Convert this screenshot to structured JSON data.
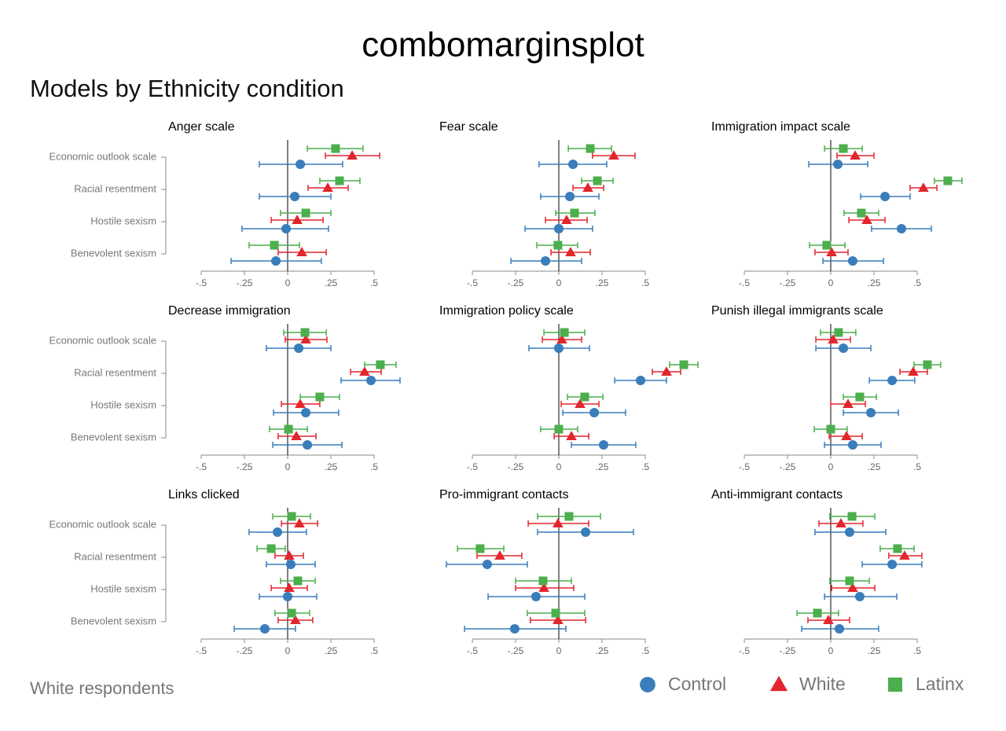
{
  "chart_data": {
    "type": "dot",
    "title": "combomarginsplot",
    "subtitle": "Models by Ethnicity condition",
    "note": "White respondents",
    "categories": [
      "Economic outlook scale",
      "Racial resentment",
      "Hostile sexism",
      "Benevolent sexism"
    ],
    "series": [
      {
        "name": "Control",
        "color": "#3a7dbb",
        "marker": "circle"
      },
      {
        "name": "White",
        "color": "#e2262d",
        "marker": "triangle"
      },
      {
        "name": "Latinx",
        "color": "#4cae4c",
        "marker": "square"
      }
    ],
    "xlim": [
      -0.5,
      0.5
    ],
    "xticks": [
      {
        "value": -0.5,
        "label": "-.5"
      },
      {
        "value": -0.25,
        "label": "-.25"
      },
      0,
      {
        "value": 0.25,
        "label": ".25"
      },
      {
        "value": 0.5,
        "label": ".5"
      }
    ],
    "panels": [
      {
        "title": "Anger scale",
        "series": [
          {
            "values": [
              0.073,
              0.041,
              -0.009,
              -0.068
            ],
            "low": [
              -0.164,
              -0.164,
              -0.264,
              -0.327
            ],
            "high": [
              0.318,
              0.25,
              0.236,
              0.195
            ]
          },
          {
            "values": [
              0.373,
              0.232,
              0.055,
              0.082
            ],
            "low": [
              0.218,
              0.118,
              -0.095,
              -0.055
            ],
            "high": [
              0.532,
              0.35,
              0.205,
              0.223
            ]
          },
          {
            "values": [
              0.277,
              0.3,
              0.105,
              -0.077
            ],
            "low": [
              0.114,
              0.186,
              -0.041,
              -0.223
            ],
            "high": [
              0.436,
              0.418,
              0.25,
              0.068
            ]
          }
        ]
      },
      {
        "title": "Fear scale",
        "series": [
          {
            "values": [
              0.082,
              0.064,
              0,
              -0.077
            ],
            "low": [
              -0.114,
              -0.105,
              -0.195,
              -0.277
            ],
            "high": [
              0.277,
              0.232,
              0.195,
              0.132
            ]
          },
          {
            "values": [
              0.318,
              0.168,
              0.045,
              0.068
            ],
            "low": [
              0.195,
              0.082,
              -0.077,
              -0.045
            ],
            "high": [
              0.441,
              0.259,
              0.164,
              0.182
            ]
          },
          {
            "values": [
              0.182,
              0.223,
              0.091,
              -0.005
            ],
            "low": [
              0.055,
              0.132,
              -0.018,
              -0.127
            ],
            "high": [
              0.305,
              0.314,
              0.209,
              0.109
            ]
          }
        ]
      },
      {
        "title": "Immigration impact scale",
        "series": [
          {
            "values": [
              0.041,
              0.314,
              0.409,
              0.127
            ],
            "low": [
              -0.127,
              0.173,
              0.236,
              -0.045
            ],
            "high": [
              0.214,
              0.459,
              0.582,
              0.305
            ]
          },
          {
            "values": [
              0.141,
              0.536,
              0.209,
              0.005
            ],
            "low": [
              0.036,
              0.459,
              0.105,
              -0.091
            ],
            "high": [
              0.25,
              0.614,
              0.314,
              0.1
            ]
          },
          {
            "values": [
              0.073,
              0.677,
              0.177,
              -0.023
            ],
            "low": [
              -0.036,
              0.6,
              0.077,
              -0.123
            ],
            "high": [
              0.182,
              0.759,
              0.277,
              0.082
            ]
          }
        ]
      },
      {
        "title": "Decrease immigration",
        "series": [
          {
            "values": [
              0.064,
              0.482,
              0.105,
              0.114
            ],
            "low": [
              -0.123,
              0.309,
              -0.082,
              -0.086
            ],
            "high": [
              0.25,
              0.65,
              0.295,
              0.314
            ]
          },
          {
            "values": [
              0.105,
              0.445,
              0.073,
              0.05
            ],
            "low": [
              -0.014,
              0.364,
              -0.036,
              -0.055
            ],
            "high": [
              0.227,
              0.541,
              0.186,
              0.164
            ]
          },
          {
            "values": [
              0.1,
              0.536,
              0.186,
              0.005
            ],
            "low": [
              -0.023,
              0.445,
              0.073,
              -0.105
            ],
            "high": [
              0.223,
              0.627,
              0.3,
              0.114
            ]
          }
        ]
      },
      {
        "title": "Immigration policy scale",
        "series": [
          {
            "values": [
              0,
              0.473,
              0.205,
              0.259
            ],
            "low": [
              -0.173,
              0.323,
              0.023,
              0.073
            ],
            "high": [
              0.177,
              0.623,
              0.386,
              0.445
            ]
          },
          {
            "values": [
              0.018,
              0.623,
              0.123,
              0.073
            ],
            "low": [
              -0.095,
              0.541,
              0.014,
              -0.027
            ],
            "high": [
              0.132,
              0.705,
              0.232,
              0.173
            ]
          },
          {
            "values": [
              0.032,
              0.723,
              0.15,
              0
            ],
            "low": [
              -0.086,
              0.641,
              0.05,
              -0.105
            ],
            "high": [
              0.15,
              0.805,
              0.255,
              0.109
            ]
          }
        ]
      },
      {
        "title": "Punish illegal immigrants scale",
        "series": [
          {
            "values": [
              0.073,
              0.355,
              0.232,
              0.127
            ],
            "low": [
              -0.086,
              0.223,
              0.073,
              -0.036
            ],
            "high": [
              0.232,
              0.486,
              0.391,
              0.291
            ]
          },
          {
            "values": [
              0.014,
              0.477,
              0.1,
              0.091
            ],
            "low": [
              -0.086,
              0.4,
              0,
              -0.009
            ],
            "high": [
              0.114,
              0.559,
              0.2,
              0.182
            ]
          },
          {
            "values": [
              0.045,
              0.559,
              0.168,
              0
            ],
            "low": [
              -0.059,
              0.482,
              0.073,
              -0.095
            ],
            "high": [
              0.145,
              0.636,
              0.264,
              0.095
            ]
          }
        ]
      },
      {
        "title": "Links clicked",
        "series": [
          {
            "values": [
              -0.059,
              0.018,
              0,
              -0.132
            ],
            "low": [
              -0.223,
              -0.123,
              -0.164,
              -0.309
            ],
            "high": [
              0.109,
              0.159,
              0.168,
              0.045
            ]
          },
          {
            "values": [
              0.068,
              0.009,
              0.009,
              0.045
            ],
            "low": [
              -0.036,
              -0.073,
              -0.095,
              -0.055
            ],
            "high": [
              0.173,
              0.091,
              0.114,
              0.145
            ]
          },
          {
            "values": [
              0.023,
              -0.095,
              0.059,
              0.023
            ],
            "low": [
              -0.086,
              -0.177,
              -0.041,
              -0.073
            ],
            "high": [
              0.132,
              -0.014,
              0.159,
              0.127
            ]
          }
        ]
      },
      {
        "title": "Pro-immigrant contacts",
        "series": [
          {
            "values": [
              0.155,
              -0.414,
              -0.132,
              -0.255
            ],
            "low": [
              -0.123,
              -0.65,
              -0.409,
              -0.545
            ],
            "high": [
              0.432,
              -0.182,
              0.15,
              0.041
            ]
          },
          {
            "values": [
              -0.005,
              -0.341,
              -0.086,
              -0.005
            ],
            "low": [
              -0.177,
              -0.473,
              -0.25,
              -0.164
            ],
            "high": [
              0.173,
              -0.214,
              0.086,
              0.155
            ]
          },
          {
            "values": [
              0.059,
              -0.455,
              -0.091,
              -0.018
            ],
            "low": [
              -0.123,
              -0.586,
              -0.25,
              -0.182
            ],
            "high": [
              0.241,
              -0.318,
              0.073,
              0.15
            ]
          }
        ]
      },
      {
        "title": "Anti-immigrant contacts",
        "series": [
          {
            "values": [
              0.109,
              0.355,
              0.168,
              0.05
            ],
            "low": [
              -0.091,
              0.182,
              -0.036,
              -0.168
            ],
            "high": [
              0.318,
              0.527,
              0.382,
              0.277
            ]
          },
          {
            "values": [
              0.059,
              0.427,
              0.127,
              -0.014
            ],
            "low": [
              -0.068,
              0.336,
              0.005,
              -0.132
            ],
            "high": [
              0.186,
              0.527,
              0.255,
              0.109
            ]
          },
          {
            "values": [
              0.123,
              0.386,
              0.109,
              -0.077
            ],
            "low": [
              -0.005,
              0.286,
              -0.005,
              -0.195
            ],
            "high": [
              0.255,
              0.482,
              0.223,
              0.045
            ]
          }
        ]
      }
    ]
  }
}
